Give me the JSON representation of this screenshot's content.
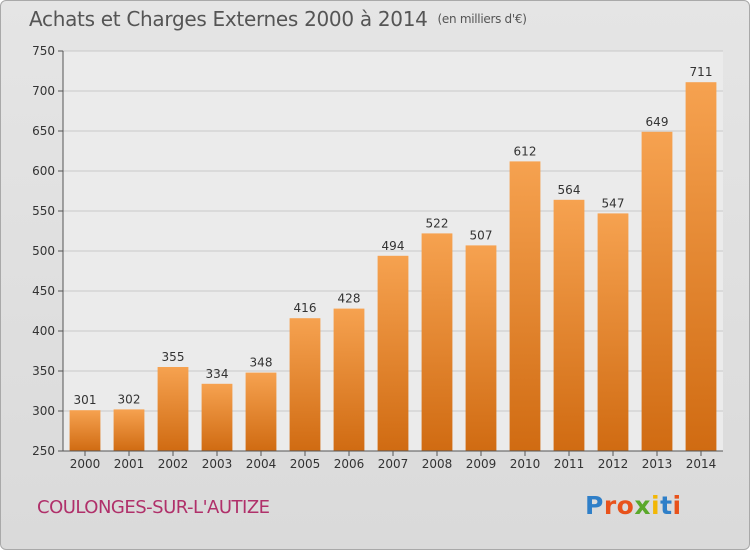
{
  "header": {
    "title": "Achats et Charges Externes 2000 à 2014",
    "unit": "(en milliers d'€)"
  },
  "footer": {
    "commune": "COULONGES-SUR-L'AUTIZE",
    "logo_text": "Proxiti",
    "logo_colors": [
      "#2f7fc8",
      "#e8521b",
      "#e8521b",
      "#5aa82a",
      "#f2b705",
      "#2f7fc8",
      "#e8521b"
    ]
  },
  "colors": {
    "bar_top": "#f6a250",
    "bar_bottom": "#d06b12",
    "grid": "#c8c8c8",
    "axis": "#555555",
    "text": "#333333"
  },
  "chart_data": {
    "type": "bar",
    "categories": [
      "2000",
      "2001",
      "2002",
      "2003",
      "2004",
      "2005",
      "2006",
      "2007",
      "2008",
      "2009",
      "2010",
      "2011",
      "2012",
      "2013",
      "2014"
    ],
    "values": [
      301,
      302,
      355,
      334,
      348,
      416,
      428,
      494,
      522,
      507,
      612,
      564,
      547,
      649,
      711
    ],
    "ylim": [
      250,
      750
    ],
    "yticks": [
      250,
      300,
      350,
      400,
      450,
      500,
      550,
      600,
      650,
      700,
      750
    ],
    "grid": true,
    "legend": "none"
  }
}
